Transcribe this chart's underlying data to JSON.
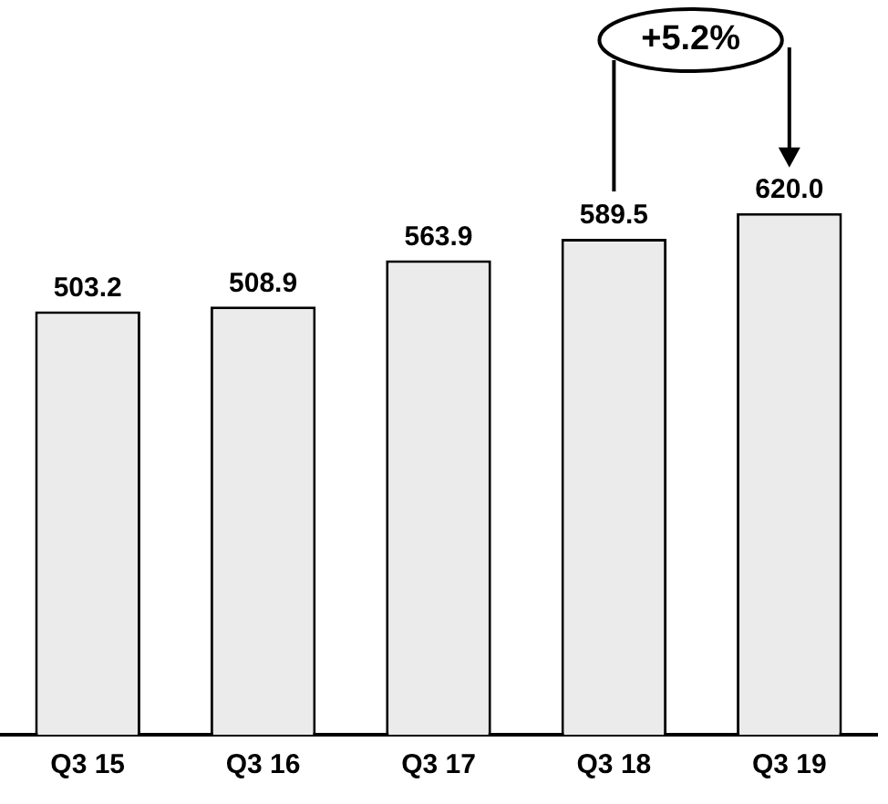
{
  "chart_data": {
    "type": "bar",
    "categories": [
      "Q3 15",
      "Q3 16",
      "Q3 17",
      "Q3 18",
      "Q3 19"
    ],
    "values": [
      503.2,
      508.9,
      563.9,
      589.5,
      620.0
    ],
    "value_labels": [
      "503.2",
      "508.9",
      "563.9",
      "589.5",
      "620.0"
    ],
    "color": "#ebebeb",
    "grid": false,
    "legend": false,
    "tick_labels": "x",
    "annotations": [
      "+5.2%"
    ]
  }
}
